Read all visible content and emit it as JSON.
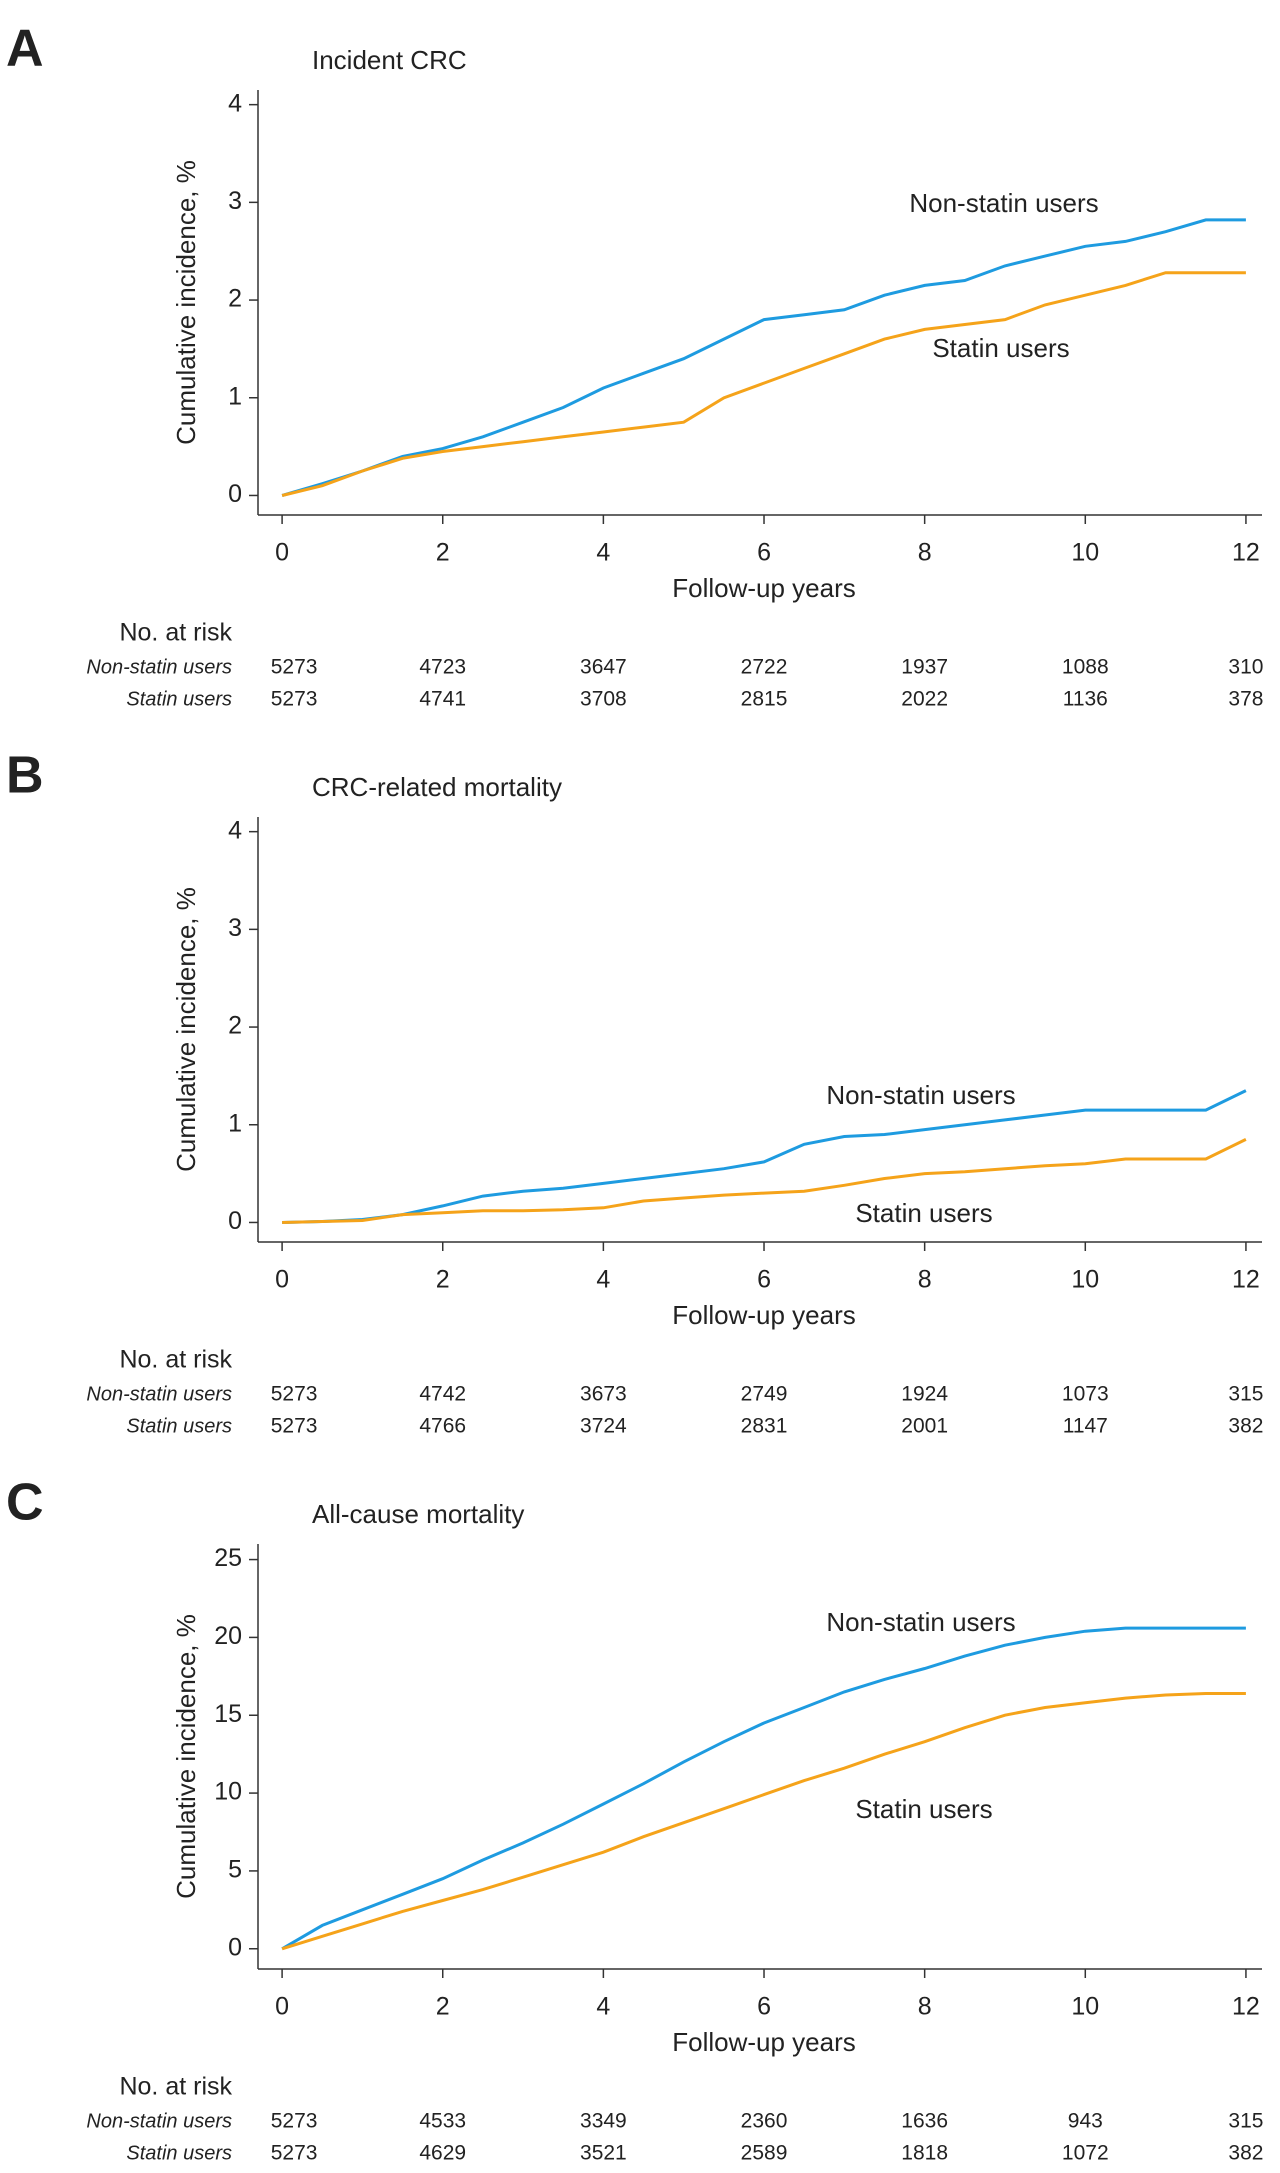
{
  "chart_data": [
    {
      "type": "line",
      "panel": "A",
      "title": "Incident CRC",
      "ylabel": "Cumulative incidence, %",
      "xlabel": "Follow-up years",
      "x": [
        0,
        0.5,
        1,
        1.5,
        2,
        2.5,
        3,
        3.5,
        4,
        4.5,
        5,
        5.5,
        6,
        6.5,
        7,
        7.5,
        8,
        8.5,
        9,
        9.5,
        10,
        10.5,
        11,
        11.5,
        12
      ],
      "series": [
        {
          "name": "Non-statin users",
          "color": "#1e9be0",
          "values": [
            0,
            0.12,
            0.25,
            0.4,
            0.48,
            0.6,
            0.75,
            0.9,
            1.1,
            1.25,
            1.4,
            1.6,
            1.8,
            1.85,
            1.9,
            2.05,
            2.15,
            2.2,
            2.35,
            2.45,
            2.55,
            2.6,
            2.7,
            2.82,
            2.82
          ],
          "at_risk": [
            5273,
            4723,
            3647,
            2722,
            1937,
            1088,
            310
          ]
        },
        {
          "name": "Statin users",
          "color": "#f5a31a",
          "values": [
            0,
            0.1,
            0.25,
            0.38,
            0.45,
            0.5,
            0.55,
            0.6,
            0.65,
            0.7,
            0.75,
            1.0,
            1.15,
            1.3,
            1.45,
            1.6,
            1.7,
            1.75,
            1.8,
            1.95,
            2.05,
            2.15,
            2.28,
            2.28,
            2.28
          ],
          "at_risk": [
            5273,
            4741,
            3708,
            2815,
            2022,
            1136,
            378
          ]
        }
      ],
      "risk_table_title": "No. at risk",
      "xlim": [
        -0.3,
        12.2
      ],
      "xticks": [
        0,
        2,
        4,
        6,
        8,
        10,
        12
      ],
      "ylim": [
        -0.2,
        4.15
      ],
      "yticks": [
        0,
        1,
        2,
        3,
        4
      ]
    },
    {
      "type": "line",
      "panel": "B",
      "title": "CRC-related mortality",
      "ylabel": "Cumulative incidence, %",
      "xlabel": "Follow-up years",
      "x": [
        0,
        0.5,
        1,
        1.5,
        2,
        2.5,
        3,
        3.5,
        4,
        4.5,
        5,
        5.5,
        6,
        6.5,
        7,
        7.5,
        8,
        8.5,
        9,
        9.5,
        10,
        10.5,
        11,
        11.5,
        12
      ],
      "series": [
        {
          "name": "Non-statin users",
          "color": "#1e9be0",
          "values": [
            0,
            0.01,
            0.03,
            0.08,
            0.17,
            0.27,
            0.32,
            0.35,
            0.4,
            0.45,
            0.5,
            0.55,
            0.62,
            0.8,
            0.88,
            0.9,
            0.95,
            1.0,
            1.05,
            1.1,
            1.15,
            1.15,
            1.15,
            1.15,
            1.35
          ],
          "at_risk": [
            5273,
            4742,
            3673,
            2749,
            1924,
            1073,
            315
          ]
        },
        {
          "name": "Statin users",
          "color": "#f5a31a",
          "values": [
            0,
            0.01,
            0.02,
            0.08,
            0.1,
            0.12,
            0.12,
            0.13,
            0.15,
            0.22,
            0.25,
            0.28,
            0.3,
            0.32,
            0.38,
            0.45,
            0.5,
            0.52,
            0.55,
            0.58,
            0.6,
            0.65,
            0.65,
            0.65,
            0.85
          ],
          "at_risk": [
            5273,
            4766,
            3724,
            2831,
            2001,
            1147,
            382
          ]
        }
      ],
      "risk_table_title": "No. at risk",
      "xlim": [
        -0.3,
        12.2
      ],
      "xticks": [
        0,
        2,
        4,
        6,
        8,
        10,
        12
      ],
      "ylim": [
        -0.2,
        4.15
      ],
      "yticks": [
        0,
        1,
        2,
        3,
        4
      ]
    },
    {
      "type": "line",
      "panel": "C",
      "title": "All-cause mortality",
      "ylabel": "Cumulative incidence, %",
      "xlabel": "Follow-up years",
      "x": [
        0,
        0.5,
        1,
        1.5,
        2,
        2.5,
        3,
        3.5,
        4,
        4.5,
        5,
        5.5,
        6,
        6.5,
        7,
        7.5,
        8,
        8.5,
        9,
        9.5,
        10,
        10.5,
        11,
        11.5,
        12
      ],
      "series": [
        {
          "name": "Non-statin users",
          "color": "#1e9be0",
          "values": [
            0,
            1.5,
            2.5,
            3.5,
            4.5,
            5.7,
            6.8,
            8,
            9.3,
            10.6,
            12,
            13.3,
            14.5,
            15.5,
            16.5,
            17.3,
            18,
            18.8,
            19.5,
            20,
            20.4,
            20.6,
            20.6,
            20.6,
            20.6
          ],
          "at_risk": [
            5273,
            4533,
            3349,
            2360,
            1636,
            943,
            315
          ]
        },
        {
          "name": "Statin users",
          "color": "#f5a31a",
          "values": [
            0,
            0.8,
            1.6,
            2.4,
            3.1,
            3.8,
            4.6,
            5.4,
            6.2,
            7.2,
            8.1,
            9,
            9.9,
            10.8,
            11.6,
            12.5,
            13.3,
            14.2,
            15,
            15.5,
            15.8,
            16.1,
            16.3,
            16.4,
            16.4
          ],
          "at_risk": [
            5273,
            4629,
            3521,
            2589,
            1818,
            1072,
            382
          ]
        }
      ],
      "risk_table_title": "No. at risk",
      "xlim": [
        -0.3,
        12.2
      ],
      "xticks": [
        0,
        2,
        4,
        6,
        8,
        10,
        12
      ],
      "ylim": [
        -1.3,
        26
      ],
      "yticks": [
        0,
        5,
        10,
        15,
        20,
        25
      ]
    }
  ]
}
